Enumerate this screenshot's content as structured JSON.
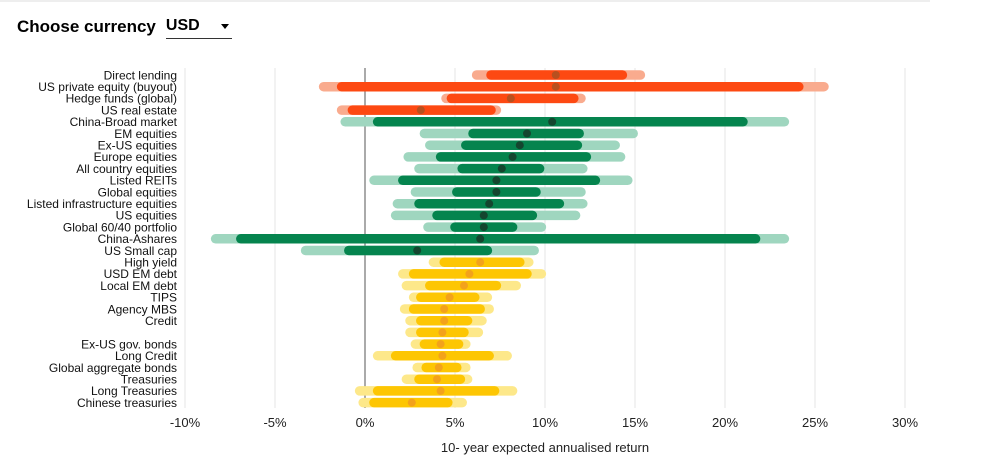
{
  "currency_selector": {
    "label": "Choose currency",
    "value": "USD",
    "icon": "chevron-down-icon"
  },
  "chart_data": {
    "type": "range-bar",
    "xlabel": "10- year expected annualised return",
    "xlim": [
      -10,
      30
    ],
    "x_ticks": [
      -10,
      -5,
      0,
      5,
      10,
      15,
      20,
      25,
      30
    ],
    "x_tick_labels": [
      "-10%",
      "-5%",
      "0%",
      "5%",
      "10%",
      "15%",
      "20%",
      "25%",
      "30%"
    ],
    "grid": true,
    "colors": {
      "alternatives": {
        "outer": "#f9ab8e",
        "inner": "#fd4912",
        "dot": "#b8501f"
      },
      "equities": {
        "outer": "#9fd6bf",
        "inner": "#05844e",
        "dot": "#14462f"
      },
      "fixed_income": {
        "outer": "#fde88a",
        "inner": "#fdc603",
        "dot": "#f3a21b"
      }
    },
    "rows": [
      {
        "label": "Direct lending",
        "group": "alternatives",
        "outer": [
          6.2,
          15.3
        ],
        "inner": [
          7.0,
          14.3
        ],
        "median": 10.6
      },
      {
        "label": "US private equity (buyout)",
        "group": "alternatives",
        "outer": [
          -2.3,
          25.5
        ],
        "inner": [
          -1.3,
          24.1
        ],
        "median": 10.6
      },
      {
        "label": "Hedge funds (global)",
        "group": "alternatives",
        "outer": [
          4.5,
          12.0
        ],
        "inner": [
          4.8,
          11.6
        ],
        "median": 8.1
      },
      {
        "label": "US real estate",
        "group": "alternatives",
        "outer": [
          -1.3,
          7.3
        ],
        "inner": [
          -0.7,
          7.0
        ],
        "median": 3.1
      },
      {
        "label": "China-Broad market",
        "group": "equities",
        "outer": [
          -1.1,
          23.3
        ],
        "inner": [
          0.7,
          21.0
        ],
        "median": 10.4
      },
      {
        "label": "EM equities",
        "group": "equities",
        "outer": [
          3.3,
          14.9
        ],
        "inner": [
          6.0,
          11.9
        ],
        "median": 9.0
      },
      {
        "label": "Ex-US equities",
        "group": "equities",
        "outer": [
          3.6,
          13.9
        ],
        "inner": [
          5.6,
          11.8
        ],
        "median": 8.6
      },
      {
        "label": "Europe equities",
        "group": "equities",
        "outer": [
          2.4,
          14.2
        ],
        "inner": [
          4.2,
          12.3
        ],
        "median": 8.2
      },
      {
        "label": "All country equities",
        "group": "equities",
        "outer": [
          3.0,
          12.1
        ],
        "inner": [
          5.4,
          9.7
        ],
        "median": 7.6
      },
      {
        "label": "Listed REITs",
        "group": "equities",
        "outer": [
          0.5,
          14.6
        ],
        "inner": [
          2.1,
          12.8
        ],
        "median": 7.3
      },
      {
        "label": "Global equities",
        "group": "equities",
        "outer": [
          2.8,
          12.0
        ],
        "inner": [
          5.1,
          9.5
        ],
        "median": 7.3
      },
      {
        "label": "Listed infrastructure equities",
        "group": "equities",
        "outer": [
          1.8,
          12.1
        ],
        "inner": [
          3.0,
          10.8
        ],
        "median": 6.9
      },
      {
        "label": "US equities",
        "group": "equities",
        "outer": [
          1.7,
          11.7
        ],
        "inner": [
          4.0,
          9.3
        ],
        "median": 6.6
      },
      {
        "label": "Global 60/40 portfolio",
        "group": "equities",
        "outer": [
          3.5,
          9.8
        ],
        "inner": [
          5.0,
          8.2
        ],
        "median": 6.6
      },
      {
        "label": "China-Ashares",
        "group": "equities",
        "outer": [
          -8.3,
          23.3
        ],
        "inner": [
          -6.9,
          21.7
        ],
        "median": 6.4
      },
      {
        "label": "US Small cap",
        "group": "equities",
        "outer": [
          -3.3,
          9.4
        ],
        "inner": [
          -0.9,
          6.8
        ],
        "median": 2.9
      },
      {
        "label": "High yield",
        "group": "fixed_income",
        "outer": [
          3.8,
          9.1
        ],
        "inner": [
          4.4,
          8.6
        ],
        "median": 6.4
      },
      {
        "label": "USD EM debt",
        "group": "fixed_income",
        "outer": [
          2.1,
          9.8
        ],
        "inner": [
          2.7,
          9.0
        ],
        "median": 5.8
      },
      {
        "label": "Local EM debt",
        "group": "fixed_income",
        "outer": [
          2.3,
          8.4
        ],
        "inner": [
          3.6,
          7.3
        ],
        "median": 5.5
      },
      {
        "label": "TIPS",
        "group": "fixed_income",
        "outer": [
          2.7,
          6.8
        ],
        "inner": [
          3.1,
          6.1
        ],
        "median": 4.7
      },
      {
        "label": "Agency MBS",
        "group": "fixed_income",
        "outer": [
          2.2,
          6.9
        ],
        "inner": [
          2.7,
          6.4
        ],
        "median": 4.4
      },
      {
        "label": "Credit",
        "group": "fixed_income",
        "outer": [
          2.5,
          6.5
        ],
        "inner": [
          3.1,
          5.7
        ],
        "median": 4.4
      },
      {
        "label": "",
        "group": "fixed_income",
        "outer": [
          2.5,
          6.3
        ],
        "inner": [
          3.1,
          5.5
        ],
        "median": 4.3
      },
      {
        "label": "Ex-US gov. bonds",
        "group": "fixed_income",
        "outer": [
          2.8,
          5.6
        ],
        "inner": [
          3.3,
          5.2
        ],
        "median": 4.2
      },
      {
        "label": "Long Credit",
        "group": "fixed_income",
        "outer": [
          0.7,
          7.9
        ],
        "inner": [
          1.7,
          6.9
        ],
        "median": 4.3
      },
      {
        "label": "Global aggregate bonds",
        "group": "fixed_income",
        "outer": [
          2.9,
          5.6
        ],
        "inner": [
          3.4,
          5.1
        ],
        "median": 4.1
      },
      {
        "label": "Treasuries",
        "group": "fixed_income",
        "outer": [
          2.3,
          5.7
        ],
        "inner": [
          3.0,
          5.3
        ],
        "median": 4.0
      },
      {
        "label": "Long Treasuries",
        "group": "fixed_income",
        "outer": [
          -0.3,
          8.2
        ],
        "inner": [
          0.7,
          7.2
        ],
        "median": 4.2
      },
      {
        "label": "Chinese treasuries",
        "group": "fixed_income",
        "outer": [
          -0.1,
          5.4
        ],
        "inner": [
          0.5,
          4.6
        ],
        "median": 2.6
      }
    ]
  }
}
